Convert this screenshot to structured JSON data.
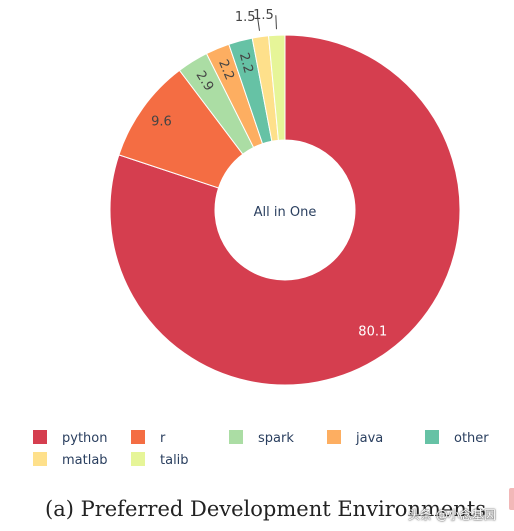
{
  "chart_data": {
    "type": "pie",
    "hole": true,
    "center_text": "All in One",
    "labels": [
      "python",
      "r",
      "spark",
      "java",
      "other",
      "matlab",
      "talib"
    ],
    "values": [
      80.1,
      9.6,
      2.9,
      2.2,
      2.2,
      1.5,
      1.5
    ],
    "value_labels": [
      "80.1",
      "9.6",
      "2.9",
      "2.2",
      "2.2",
      "1.5",
      "1.5"
    ],
    "colors": [
      "#d53e4f",
      "#f46d43",
      "#abdda4",
      "#fdae61",
      "#66c2a5",
      "#fee08b",
      "#e6f598"
    ],
    "slice_order": [
      "python",
      "r",
      "spark",
      "java",
      "other",
      "matlab",
      "talib"
    ],
    "legend_position": "bottom"
  },
  "caption": "(a) Preferred Development Environments",
  "watermark": "头条 @小念基因"
}
